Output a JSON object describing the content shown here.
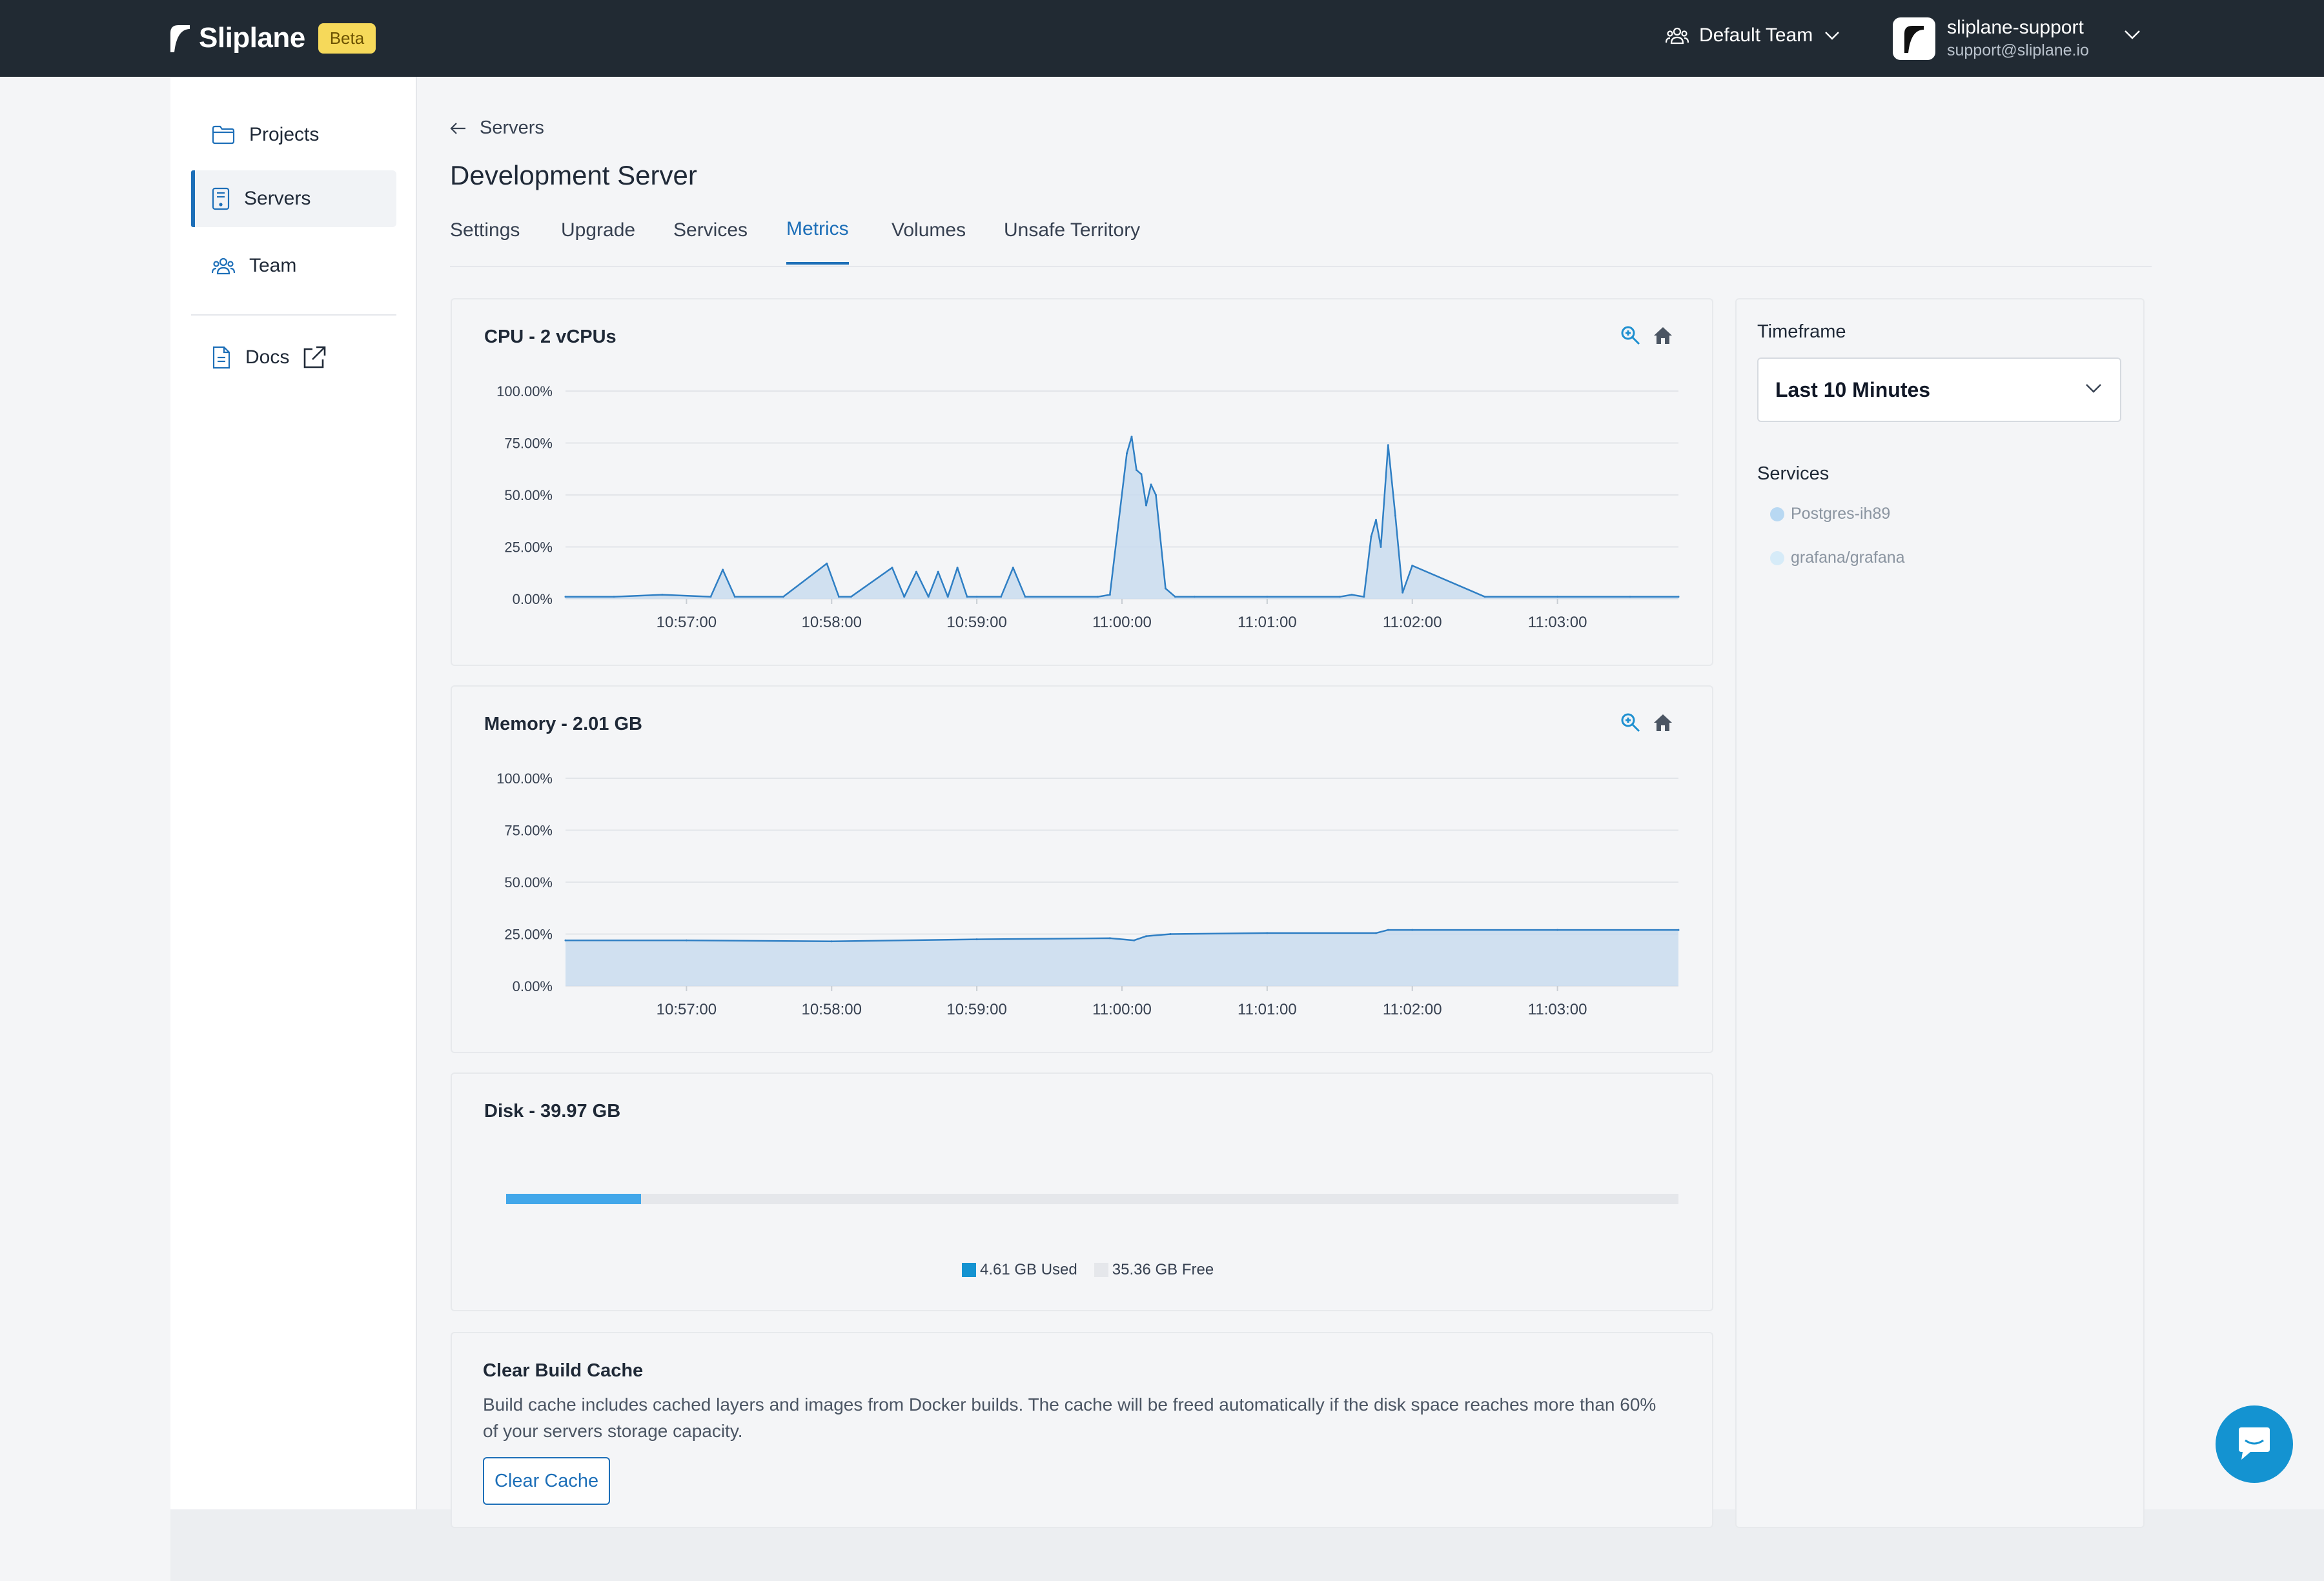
{
  "header": {
    "brand": "Sliplane",
    "beta_label": "Beta",
    "team_name": "Default Team",
    "user_name": "sliplane-support",
    "user_email": "support@sliplane.io"
  },
  "sidebar": {
    "items": [
      {
        "label": "Projects",
        "icon": "folder-icon"
      },
      {
        "label": "Servers",
        "icon": "server-icon"
      },
      {
        "label": "Team",
        "icon": "team-icon"
      }
    ],
    "docs_label": "Docs"
  },
  "page": {
    "back_label": "Servers",
    "title": "Development Server",
    "tabs": [
      "Settings",
      "Upgrade",
      "Services",
      "Metrics",
      "Volumes",
      "Unsafe Territory"
    ],
    "active_tab": "Metrics"
  },
  "cpu": {
    "title": "CPU - 2 vCPUs"
  },
  "memory": {
    "title": "Memory - 2.01 GB"
  },
  "disk": {
    "title": "Disk - 39.97 GB",
    "used_label": "4.61 GB Used",
    "free_label": "35.36 GB Free",
    "used_gb": 4.61,
    "total_gb": 39.97
  },
  "cache": {
    "title": "Clear Build Cache",
    "description": "Build cache includes cached layers and images from Docker builds. The cache will be freed automatically if the disk space reaches more than 60% of your servers storage capacity.",
    "button_label": "Clear Cache"
  },
  "side_panel": {
    "timeframe_label": "Timeframe",
    "timeframe_value": "Last 10 Minutes",
    "services_label": "Services",
    "services": [
      "Postgres-ih89",
      "grafana/grafana"
    ]
  },
  "colors": {
    "accent": "#1d6fb8",
    "line": "#2f7fc4",
    "area": "#c9dcef",
    "disk_used": "#42a7ea",
    "topbar": "#212a33"
  },
  "chart_data": [
    {
      "type": "area",
      "title": "CPU - 2 vCPUs",
      "x": [
        "10:56:10",
        "10:56:30",
        "10:56:50",
        "10:57:10",
        "10:57:15",
        "10:57:20",
        "10:57:40",
        "10:57:58",
        "10:58:03",
        "10:58:08",
        "10:58:25",
        "10:58:30",
        "10:58:35",
        "10:58:40",
        "10:58:44",
        "10:58:48",
        "10:58:52",
        "10:58:56",
        "10:59:00",
        "10:59:10",
        "10:59:15",
        "10:59:20",
        "10:59:50",
        "10:59:55",
        "11:00:02",
        "11:00:04",
        "11:00:06",
        "11:00:08",
        "11:00:10",
        "11:00:12",
        "11:00:14",
        "11:00:18",
        "11:00:22",
        "11:00:30",
        "11:01:00",
        "11:01:30",
        "11:01:35",
        "11:01:40",
        "11:01:43",
        "11:01:45",
        "11:01:47",
        "11:01:50",
        "11:01:53",
        "11:01:56",
        "11:02:00",
        "11:02:30",
        "11:03:00",
        "11:03:30",
        "11:03:50"
      ],
      "values": [
        1,
        1,
        2,
        1,
        14,
        1,
        1,
        17,
        1,
        1,
        15,
        1,
        13,
        1,
        13,
        1,
        15,
        1,
        1,
        1,
        15,
        1,
        1,
        2,
        70,
        78,
        62,
        60,
        45,
        55,
        50,
        5,
        1,
        1,
        1,
        1,
        2,
        1,
        30,
        38,
        25,
        74,
        40,
        3,
        16,
        1,
        1,
        1,
        1
      ],
      "xlabel": "",
      "ylabel": "",
      "ylim": [
        0,
        100
      ],
      "yticks": [
        "100.00%",
        "75.00%",
        "50.00%",
        "25.00%",
        "0.00%"
      ],
      "xticks": [
        "10:57:00",
        "10:58:00",
        "10:59:00",
        "11:00:00",
        "11:01:00",
        "11:02:00",
        "11:03:00"
      ]
    },
    {
      "type": "area",
      "title": "Memory - 2.01 GB",
      "x": [
        "10:56:10",
        "10:57:00",
        "10:58:00",
        "10:59:00",
        "10:59:55",
        "11:00:05",
        "11:00:10",
        "11:00:20",
        "11:01:00",
        "11:01:45",
        "11:01:50",
        "11:02:00",
        "11:03:00",
        "11:03:50"
      ],
      "values": [
        22,
        22,
        21.5,
        22.5,
        23,
        22,
        24,
        25,
        25.5,
        25.5,
        27,
        27,
        27,
        27
      ],
      "xlabel": "",
      "ylabel": "",
      "ylim": [
        0,
        100
      ],
      "yticks": [
        "100.00%",
        "75.00%",
        "50.00%",
        "25.00%",
        "0.00%"
      ],
      "xticks": [
        "10:57:00",
        "10:58:00",
        "10:59:00",
        "11:00:00",
        "11:01:00",
        "11:02:00",
        "11:03:00"
      ]
    },
    {
      "type": "bar",
      "title": "Disk - 39.97 GB",
      "categories": [
        "4.61 GB Used",
        "35.36 GB Free"
      ],
      "values": [
        4.61,
        35.36
      ]
    }
  ]
}
